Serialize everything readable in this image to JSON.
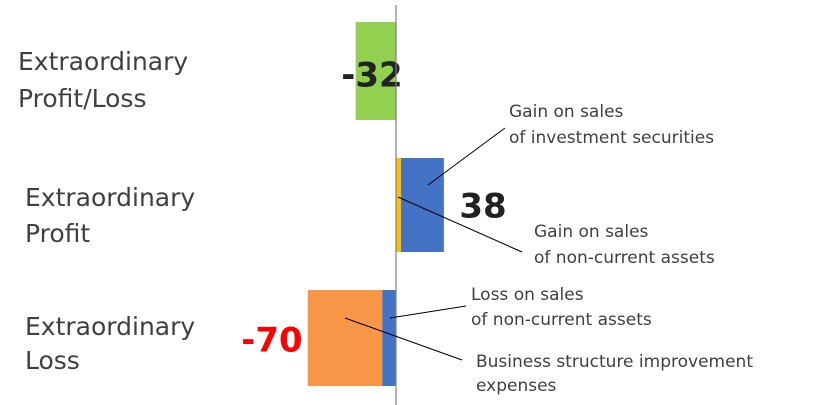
{
  "chart_data": {
    "type": "bar",
    "xlim": [
      -75,
      45
    ],
    "rows": [
      {
        "category": [
          "Extraordinary",
          "Profit/Loss"
        ],
        "total": -32,
        "total_color": "#222222",
        "segments": [
          {
            "value": -32,
            "color": "#92d050"
          }
        ]
      },
      {
        "category": [
          "Extraordinary",
          "Profit"
        ],
        "total": 38,
        "total_color": "#222222",
        "segments": [
          {
            "value": 4,
            "color": "#ffc000",
            "name": [
              "Gain on sales",
              "of non-current assets"
            ]
          },
          {
            "value": 34,
            "color": "#4472c4",
            "name": [
              "Gain on sales",
              "of investment securities"
            ]
          }
        ]
      },
      {
        "category": [
          "Extraordinary",
          "Loss"
        ],
        "total": -70,
        "total_color": "#ff0000",
        "segments": [
          {
            "value": -11,
            "color": "#4472c4",
            "name": [
              "Loss on sales",
              "of non-current assets"
            ]
          },
          {
            "value": -59,
            "color": "#f79646",
            "name": [
              "Business structure improvement",
              "expenses"
            ]
          }
        ]
      }
    ]
  }
}
